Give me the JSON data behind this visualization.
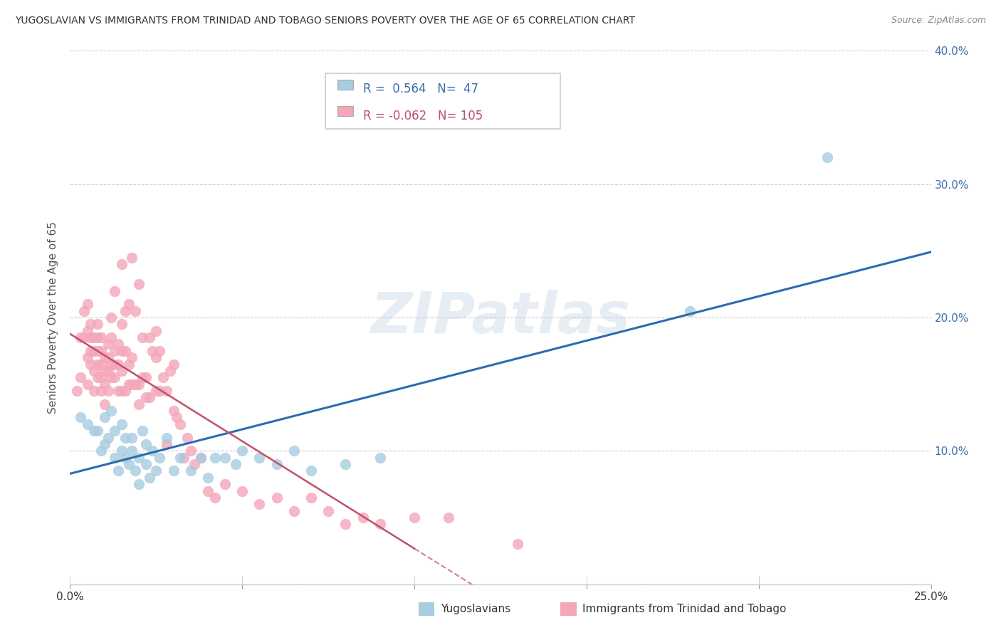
{
  "title": "YUGOSLAVIAN VS IMMIGRANTS FROM TRINIDAD AND TOBAGO SENIORS POVERTY OVER THE AGE OF 65 CORRELATION CHART",
  "source": "Source: ZipAtlas.com",
  "ylabel": "Seniors Poverty Over the Age of 65",
  "xlim": [
    0.0,
    0.25
  ],
  "ylim": [
    0.0,
    0.4
  ],
  "yticks": [
    0.0,
    0.1,
    0.2,
    0.3,
    0.4
  ],
  "xticks": [
    0.0,
    0.05,
    0.1,
    0.15,
    0.2,
    0.25
  ],
  "legend_blue_r": "0.564",
  "legend_blue_n": "47",
  "legend_pink_r": "-0.062",
  "legend_pink_n": "105",
  "legend_label_blue": "Yugoslavians",
  "legend_label_pink": "Immigrants from Trinidad and Tobago",
  "blue_color": "#a8cce0",
  "pink_color": "#f4a7b9",
  "blue_line_color": "#2b6cb0",
  "pink_line_color": "#c0506a",
  "background_color": "#ffffff",
  "grid_color": "#cccccc",
  "watermark": "ZIPatlas",
  "blue_x": [
    0.003,
    0.005,
    0.007,
    0.008,
    0.009,
    0.01,
    0.01,
    0.011,
    0.012,
    0.013,
    0.013,
    0.014,
    0.015,
    0.015,
    0.016,
    0.016,
    0.017,
    0.018,
    0.018,
    0.019,
    0.02,
    0.02,
    0.021,
    0.022,
    0.022,
    0.023,
    0.024,
    0.025,
    0.026,
    0.028,
    0.03,
    0.032,
    0.035,
    0.038,
    0.04,
    0.042,
    0.045,
    0.048,
    0.05,
    0.055,
    0.06,
    0.065,
    0.07,
    0.08,
    0.09,
    0.18,
    0.22
  ],
  "blue_y": [
    0.125,
    0.12,
    0.115,
    0.115,
    0.1,
    0.125,
    0.105,
    0.11,
    0.13,
    0.095,
    0.115,
    0.085,
    0.1,
    0.12,
    0.11,
    0.095,
    0.09,
    0.1,
    0.11,
    0.085,
    0.095,
    0.075,
    0.115,
    0.09,
    0.105,
    0.08,
    0.1,
    0.085,
    0.095,
    0.11,
    0.085,
    0.095,
    0.085,
    0.095,
    0.08,
    0.095,
    0.095,
    0.09,
    0.1,
    0.095,
    0.09,
    0.1,
    0.085,
    0.09,
    0.095,
    0.205,
    0.32
  ],
  "pink_x": [
    0.002,
    0.003,
    0.003,
    0.004,
    0.004,
    0.005,
    0.005,
    0.005,
    0.005,
    0.006,
    0.006,
    0.006,
    0.006,
    0.007,
    0.007,
    0.007,
    0.007,
    0.008,
    0.008,
    0.008,
    0.008,
    0.008,
    0.009,
    0.009,
    0.009,
    0.009,
    0.009,
    0.01,
    0.01,
    0.01,
    0.01,
    0.011,
    0.011,
    0.011,
    0.011,
    0.012,
    0.012,
    0.012,
    0.012,
    0.013,
    0.013,
    0.013,
    0.013,
    0.014,
    0.014,
    0.014,
    0.015,
    0.015,
    0.015,
    0.015,
    0.015,
    0.016,
    0.016,
    0.016,
    0.017,
    0.017,
    0.017,
    0.018,
    0.018,
    0.018,
    0.019,
    0.019,
    0.02,
    0.02,
    0.02,
    0.021,
    0.021,
    0.022,
    0.022,
    0.023,
    0.023,
    0.024,
    0.025,
    0.025,
    0.025,
    0.026,
    0.026,
    0.027,
    0.028,
    0.028,
    0.029,
    0.03,
    0.03,
    0.031,
    0.032,
    0.033,
    0.034,
    0.035,
    0.036,
    0.038,
    0.04,
    0.042,
    0.045,
    0.05,
    0.055,
    0.06,
    0.065,
    0.07,
    0.075,
    0.08,
    0.085,
    0.09,
    0.1,
    0.11,
    0.13
  ],
  "pink_y": [
    0.145,
    0.155,
    0.185,
    0.185,
    0.205,
    0.15,
    0.17,
    0.19,
    0.21,
    0.165,
    0.175,
    0.185,
    0.195,
    0.145,
    0.16,
    0.175,
    0.185,
    0.155,
    0.165,
    0.175,
    0.185,
    0.195,
    0.145,
    0.155,
    0.165,
    0.175,
    0.185,
    0.135,
    0.15,
    0.16,
    0.17,
    0.145,
    0.16,
    0.17,
    0.18,
    0.155,
    0.165,
    0.185,
    0.2,
    0.155,
    0.165,
    0.175,
    0.22,
    0.145,
    0.165,
    0.18,
    0.145,
    0.16,
    0.175,
    0.195,
    0.24,
    0.145,
    0.175,
    0.205,
    0.15,
    0.165,
    0.21,
    0.15,
    0.17,
    0.245,
    0.15,
    0.205,
    0.135,
    0.15,
    0.225,
    0.155,
    0.185,
    0.14,
    0.155,
    0.14,
    0.185,
    0.175,
    0.145,
    0.17,
    0.19,
    0.145,
    0.175,
    0.155,
    0.105,
    0.145,
    0.16,
    0.13,
    0.165,
    0.125,
    0.12,
    0.095,
    0.11,
    0.1,
    0.09,
    0.095,
    0.07,
    0.065,
    0.075,
    0.07,
    0.06,
    0.065,
    0.055,
    0.065,
    0.055,
    0.045,
    0.05,
    0.045,
    0.05,
    0.05,
    0.03
  ]
}
